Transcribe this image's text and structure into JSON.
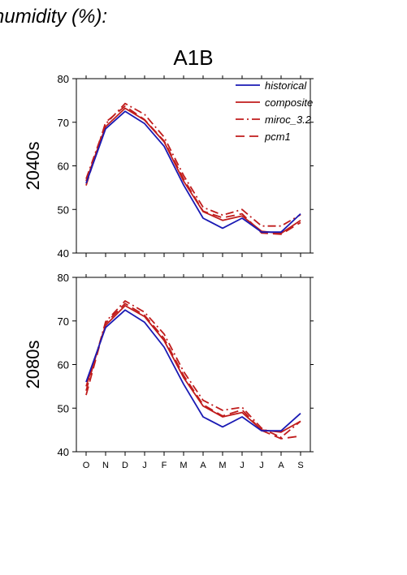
{
  "heading": "humidity (%):",
  "chart_data": {
    "type": "line",
    "scenario": "A1B",
    "categories": [
      "O",
      "N",
      "D",
      "J",
      "F",
      "M",
      "A",
      "M",
      "J",
      "J",
      "A",
      "S"
    ],
    "ylim": [
      40,
      80
    ],
    "yticks": [
      40,
      50,
      60,
      70,
      80
    ],
    "legend": {
      "placement": "top-right"
    },
    "legend_entries": [
      {
        "name": "historical",
        "color": "#1a1ab4",
        "dash": "solid"
      },
      {
        "name": "composite",
        "color": "#c01c1c",
        "dash": "solid"
      },
      {
        "name": "miroc_3.2",
        "color": "#c01c1c",
        "dash": "dashdot"
      },
      {
        "name": "pcm1",
        "color": "#c01c1c",
        "dash": "longdash"
      }
    ],
    "panels": [
      {
        "label": "2040s",
        "series": [
          {
            "name": "historical",
            "values": [
              56.0,
              68.5,
              72.5,
              69.7,
              64.5,
              55.6,
              48.0,
              45.7,
              48.0,
              44.8,
              44.8,
              49.0
            ]
          },
          {
            "name": "composite",
            "values": [
              56.5,
              69.0,
              73.2,
              70.5,
              65.5,
              56.5,
              49.5,
              47.5,
              48.5,
              45.0,
              44.5,
              47.5
            ]
          },
          {
            "name": "miroc_3.2",
            "values": [
              57.0,
              69.6,
              74.3,
              71.8,
              66.6,
              57.8,
              50.5,
              48.7,
              50.0,
              46.2,
              46.2,
              48.8
            ]
          },
          {
            "name": "pcm1",
            "values": [
              55.5,
              70.0,
              73.7,
              70.6,
              65.7,
              57.0,
              49.6,
              48.1,
              49.0,
              44.6,
              44.3,
              47.0
            ]
          }
        ]
      },
      {
        "label": "2080s",
        "series": [
          {
            "name": "historical",
            "values": [
              56.0,
              68.5,
              72.5,
              69.7,
              64.0,
              55.5,
              48.0,
              45.7,
              48.0,
              44.8,
              44.8,
              48.8
            ]
          },
          {
            "name": "composite",
            "values": [
              55.0,
              69.0,
              73.5,
              71.0,
              65.5,
              57.0,
              50.5,
              48.0,
              49.0,
              45.0,
              44.5,
              47.0
            ]
          },
          {
            "name": "miroc_3.2",
            "values": [
              54.0,
              69.8,
              74.6,
              72.0,
              67.0,
              58.4,
              51.8,
              49.5,
              50.2,
              45.4,
              43.3,
              47.0
            ]
          },
          {
            "name": "pcm1",
            "values": [
              53.0,
              69.5,
              74.0,
              71.3,
              66.0,
              57.5,
              50.8,
              48.2,
              49.6,
              44.9,
              43.0,
              43.6
            ]
          }
        ]
      }
    ]
  }
}
